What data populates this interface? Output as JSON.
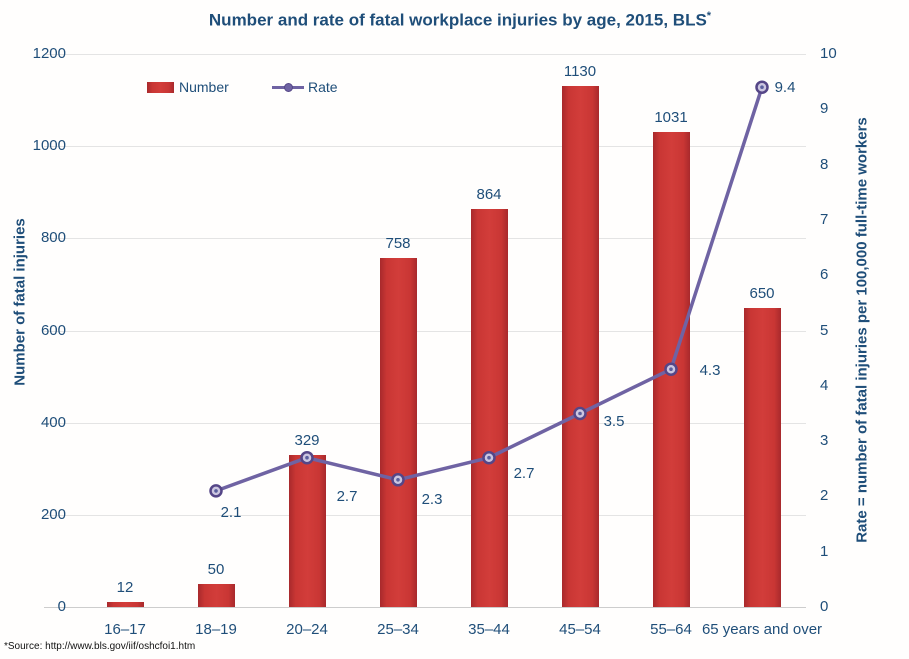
{
  "title": {
    "text": "Number and rate of fatal workplace injuries by age, 2015, BLS",
    "superscript": "*"
  },
  "legend": {
    "number_label": "Number",
    "rate_label": "Rate"
  },
  "left_axis": {
    "title": "Number of fatal injuries",
    "ticks": [
      0,
      200,
      400,
      600,
      800,
      1000,
      1200
    ],
    "max": 1200
  },
  "right_axis": {
    "title": "Rate = number of fatal injuries per 100,000 full-time workers",
    "ticks": [
      0,
      1,
      2,
      3,
      4,
      5,
      6,
      7,
      8,
      9,
      10
    ],
    "max": 10
  },
  "footnote": "*Source: http://www.bls.gov/iif/oshcfoi1.htm",
  "colors": {
    "text_blue": "#1F4E79",
    "bar_center": "#d23d3a",
    "bar_edge": "#a8292c",
    "line": "#6F63A3",
    "marker_ring": "#554687",
    "marker_fill": "#CCC6E0",
    "marker_center": "#5A5F9E",
    "gridline": "#E4E4E4",
    "baseline": "#CDCDCD"
  },
  "chart_data": {
    "type": "bar",
    "subtype": "combo bar + line, dual axis",
    "title": "Number and rate of fatal workplace injuries by age, 2015, BLS*",
    "categories": [
      "16–17",
      "18–19",
      "20–24",
      "25–34",
      "35–44",
      "45–54",
      "55–64",
      "65 years and over"
    ],
    "series": [
      {
        "name": "Number",
        "type": "bar",
        "axis": "left",
        "values": [
          12,
          50,
          329,
          758,
          864,
          1130,
          1031,
          650
        ]
      },
      {
        "name": "Rate",
        "type": "line",
        "axis": "right",
        "values": [
          null,
          2.1,
          2.7,
          2.3,
          2.7,
          3.5,
          4.3,
          9.4
        ]
      }
    ],
    "xlabel": "",
    "ylabel_left": "Number of fatal injuries",
    "ylabel_right": "Rate = number of fatal injuries per 100,000 full-time workers",
    "ylim_left": [
      0,
      1200
    ],
    "ylim_right": [
      0,
      10
    ],
    "grid": true,
    "legend_position": "top-left",
    "data_labels": true
  }
}
